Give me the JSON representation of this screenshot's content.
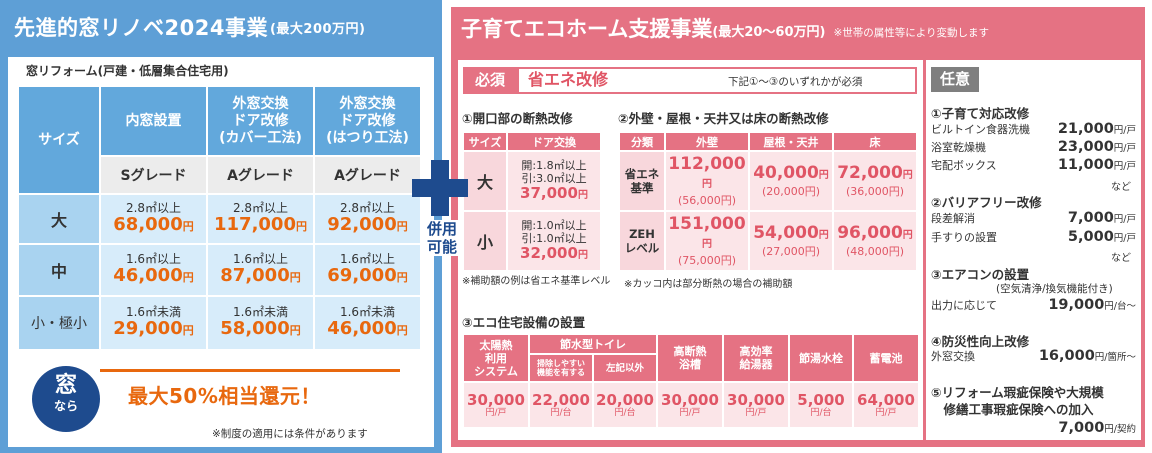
{
  "left": {
    "title": "先進的窓リノベ2024事業",
    "title_sub": "(最大200万円)",
    "subtitle": "窓リフォーム(戸建・低層集合住宅用)",
    "col_size": "サイズ",
    "cols": [
      {
        "name": "内窓設置",
        "grade": "Sグレード"
      },
      {
        "name": "外窓交換\nドア改修\n(カバー工法)",
        "grade": "Aグレード"
      },
      {
        "name": "外窓交換\nドア改修\n(はつり工法)",
        "grade": "Aグレード"
      }
    ],
    "rows": [
      {
        "size": "大",
        "cells": [
          {
            "area": "2.8㎡以上",
            "price": "68,000",
            "unit": "円"
          },
          {
            "area": "2.8㎡以上",
            "price": "117,000",
            "unit": "円"
          },
          {
            "area": "2.8㎡以上",
            "price": "92,000",
            "unit": "円"
          }
        ]
      },
      {
        "size": "中",
        "cells": [
          {
            "area": "1.6㎡以上",
            "price": "46,000",
            "unit": "円"
          },
          {
            "area": "1.6㎡以上",
            "price": "87,000",
            "unit": "円"
          },
          {
            "area": "1.6㎡以上",
            "price": "69,000",
            "unit": "円"
          }
        ]
      },
      {
        "size": "小・極小",
        "cells": [
          {
            "area": "1.6㎡未満",
            "price": "29,000",
            "unit": "円"
          },
          {
            "area": "1.6㎡未満",
            "price": "58,000",
            "unit": "円"
          },
          {
            "area": "1.6㎡未満",
            "price": "46,000",
            "unit": "円"
          }
        ]
      }
    ],
    "badge_top": "窓",
    "badge_bottom": "なら",
    "highlight": "最大50%相当還元！",
    "note": "※制度の適用には条件があります"
  },
  "combine": "併用\n可能",
  "right": {
    "title": "子育てエコホーム支援事業",
    "title_sub": "(最大20～60万円)",
    "title_note": "※世帯の属性等により変動します",
    "required_tag": "必須",
    "required_title": "省エネ改修",
    "required_note": "下記①～③のいずれかが必須",
    "s1_title": "①開口部の断熱改修",
    "s1_table": {
      "h_size": "サイズ",
      "h_door": "ドア交換",
      "rows": [
        {
          "size": "大",
          "a1": "開:1.8㎡以上",
          "a2": "引:3.0㎡以上",
          "price": "37,000",
          "unit": "円"
        },
        {
          "size": "小",
          "a1": "開:1.0㎡以上",
          "a2": "引:1.0㎡以上",
          "price": "32,000",
          "unit": "円"
        }
      ]
    },
    "s1_note": "※補助額の例は省エネ基準レベル",
    "s2_title": "②外壁・屋根・天井又は床の断熱改修",
    "s2_table": {
      "headers": [
        "分類",
        "外壁",
        "屋根・天井",
        "床"
      ],
      "rows": [
        {
          "label": "省エネ\n基準",
          "cells": [
            {
              "p": "112,000",
              "q": "(56,000円)"
            },
            {
              "p": "40,000",
              "q": "(20,000円)"
            },
            {
              "p": "72,000",
              "q": "(36,000円)"
            }
          ]
        },
        {
          "label": "ZEH\nレベル",
          "cells": [
            {
              "p": "151,000",
              "q": "(75,000円)"
            },
            {
              "p": "54,000",
              "q": "(27,000円)"
            },
            {
              "p": "96,000",
              "q": "(48,000円)"
            }
          ]
        }
      ],
      "unit": "円"
    },
    "s2_note": "※カッコ内は部分断熱の場合の補助額",
    "s3_title": "③エコ住宅設備の設置",
    "s3_table": {
      "h_solar": "太陽熱\n利用\nシステム",
      "h_toilet": "節水型トイレ",
      "h_toilet_a": "掃除しやすい\n機能を有する",
      "h_toilet_b": "左記以外",
      "h_bath": "高断熱\n浴槽",
      "h_heater": "高効率\n給湯器",
      "h_faucet": "節湯水栓",
      "h_battery": "蓄電池",
      "values": [
        {
          "p": "30,000",
          "u": "円/戸"
        },
        {
          "p": "22,000",
          "u": "円/台"
        },
        {
          "p": "20,000",
          "u": "円/台"
        },
        {
          "p": "30,000",
          "u": "円/戸"
        },
        {
          "p": "30,000",
          "u": "円/戸"
        },
        {
          "p": "5,000",
          "u": "円/台"
        },
        {
          "p": "64,000",
          "u": "円/戸"
        }
      ]
    },
    "optional_tag": "任意",
    "optional": [
      {
        "title": "①子育て対応改修",
        "items": [
          {
            "label": "ビルトイン食器洗機",
            "price": "21,000",
            "unit": "円/戸"
          },
          {
            "label": "浴室乾燥機",
            "price": "23,000",
            "unit": "円/戸"
          },
          {
            "label": "宅配ボックス",
            "price": "11,000",
            "unit": "円/戸"
          }
        ],
        "etc": "など"
      },
      {
        "title": "②バリアフリー改修",
        "items": [
          {
            "label": "段差解消",
            "price": "7,000",
            "unit": "円/戸"
          },
          {
            "label": "手すりの設置",
            "price": "5,000",
            "unit": "円/戸"
          }
        ],
        "etc": "など"
      },
      {
        "title": "③エアコンの設置",
        "sub": "(空気清浄/換気機能付き)",
        "items": [
          {
            "label": "出力に応じて",
            "price": "19,000",
            "unit": "円/台～"
          }
        ]
      },
      {
        "title": "④防災性向上改修",
        "items": [
          {
            "label": "外窓交換",
            "price": "16,000",
            "unit": "円/箇所～"
          }
        ]
      },
      {
        "title": "⑤リフォーム瑕疵保険や大規模\n　修繕工事瑕疵保険への加入",
        "items": [
          {
            "label": "",
            "price": "7,000",
            "unit": "円/契約"
          }
        ]
      }
    ]
  }
}
